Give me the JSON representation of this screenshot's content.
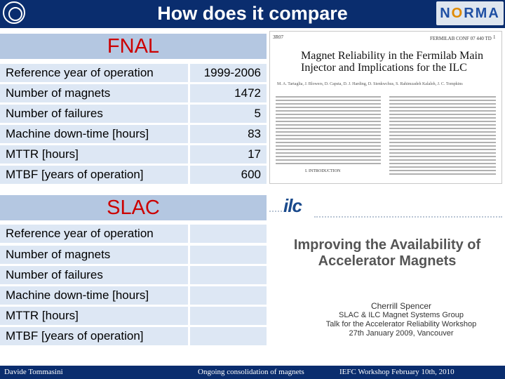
{
  "header": {
    "title": "How does it compare",
    "logo_right_a": "N",
    "logo_right_o": "O",
    "logo_right_b": "RMA"
  },
  "fnal": {
    "title": "FNAL",
    "rows": [
      {
        "label": "Reference year of operation",
        "value": "1999-2006"
      },
      {
        "label": "Number of magnets",
        "value": "1472"
      },
      {
        "label": "Number of failures",
        "value": "5"
      },
      {
        "label": "Machine down-time [hours]",
        "value": "83"
      },
      {
        "label": "MTTR [hours]",
        "value": "17"
      },
      {
        "label": "MTBF [years of operation]",
        "value": "600"
      }
    ]
  },
  "slac": {
    "title": "SLAC",
    "rows": [
      {
        "label": "Reference year of operation",
        "value": ""
      },
      {
        "label": "Number of magnets",
        "value": ""
      },
      {
        "label": "Number of failures",
        "value": ""
      },
      {
        "label": "Machine down-time [hours]",
        "value": ""
      },
      {
        "label": "MTTR [hours]",
        "value": ""
      },
      {
        "label": "MTBF [years of operation]",
        "value": ""
      }
    ]
  },
  "paper_fnal": {
    "left_code": "3R07",
    "conf_code": "FERMILAB CONF 07 440 TD",
    "page_num": "1",
    "title": "Magnet Reliability in the Fermilab Main Injector and Implications for the ILC",
    "authors": "M. A. Tartaglia, J. Blowers, D. Capsta, D. J. Harding, D. Sienkwchus, S. Rahimzadeh Kalaleh, J. C. Tompkins",
    "section_heading": "I. INTRODUCTION"
  },
  "paper_slac": {
    "logo": "ilc",
    "title_line1": "Improving the Availability of",
    "title_line2": "Accelerator Magnets",
    "author": "Cherrill Spencer",
    "affiliation": "SLAC & ILC Magnet Systems Group",
    "talk": "Talk for the Accelerator Reliability Workshop",
    "date": "27th January 2009, Vancouver"
  },
  "footer": {
    "author": "Davide Tommasini",
    "subject": "Ongoing consolidation of magnets",
    "event": "IEFC Workshop February 10th, 2010"
  },
  "colors": {
    "header_bg": "#0a2d6e",
    "section_title_bg": "#b4c7e1",
    "row_bg": "#dde7f4",
    "section_title_text": "#cc0000"
  }
}
